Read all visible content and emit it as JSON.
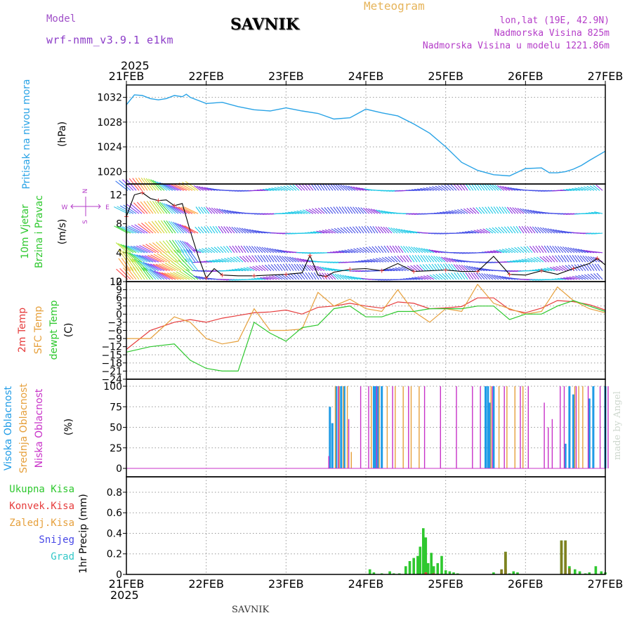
{
  "header": {
    "model_label": "Model",
    "model_name": "wrf-nmm_v3.9.1 e1km",
    "title": "SAVNIK",
    "chart_kind": "Meteogram",
    "lonlat": "lon,lat (19E, 42.9N)",
    "elevation": "Nadmorska Visina 825m",
    "model_elevation": "Nadmorska Visina u modelu 1221.86m",
    "year": "2025",
    "footer_station": "SAVNIK",
    "credit": "made by Angel"
  },
  "colors": {
    "pressure": "#29a3e6",
    "wind_label": "#2ec82e",
    "temp2m": "#e63c3c",
    "sfc_temp": "#e6a03c",
    "dewpt": "#2ec82e",
    "cloud_high": "#1e9be6",
    "cloud_mid": "#e6a03c",
    "cloud_low": "#c832c8",
    "precip_total": "#2ec82e",
    "precip_conv": "#e63c3c",
    "precip_frozen": "#e6a03c",
    "snow": "#4646e6",
    "hail": "#32c8c8"
  },
  "chart_data": [
    {
      "type": "line",
      "panel": "pressure",
      "ylabel": "Pritisak na nivou mora",
      "unit": "(hPa)",
      "x_categories": [
        "21FEB",
        "22FEB",
        "23FEB",
        "24FEB",
        "25FEB",
        "26FEB",
        "27FEB"
      ],
      "ylim": [
        1018,
        1034
      ],
      "yticks": [
        1020,
        1024,
        1028,
        1032
      ],
      "x": [
        0,
        0.1,
        0.2,
        0.3,
        0.4,
        0.5,
        0.6,
        0.7,
        0.75,
        0.8,
        0.9,
        1.0,
        1.2,
        1.4,
        1.6,
        1.8,
        2.0,
        2.2,
        2.4,
        2.6,
        2.8,
        3.0,
        3.2,
        3.4,
        3.6,
        3.8,
        4.0,
        4.2,
        4.4,
        4.6,
        4.8,
        5.0,
        5.2,
        5.3,
        5.4,
        5.5,
        5.6,
        5.7,
        5.8,
        6.0
      ],
      "values": [
        1030.8,
        1032.4,
        1032.3,
        1031.8,
        1031.6,
        1031.8,
        1032.3,
        1032.1,
        1032.5,
        1032.0,
        1031.5,
        1031.0,
        1031.2,
        1030.5,
        1030.0,
        1029.8,
        1030.3,
        1029.8,
        1029.4,
        1028.5,
        1028.7,
        1030.1,
        1029.5,
        1029.0,
        1027.7,
        1026.2,
        1024.0,
        1021.5,
        1020.2,
        1019.5,
        1019.3,
        1020.5,
        1020.6,
        1019.8,
        1019.8,
        1020.0,
        1020.4,
        1021.0,
        1021.8,
        1023.3
      ]
    },
    {
      "type": "line",
      "panel": "wind",
      "ylabel": [
        "10m Vjetar",
        "Brzina i Pravac"
      ],
      "unit": "(m/s)",
      "compass": [
        "N",
        "W",
        "E",
        "S"
      ],
      "ylim": [
        0,
        13.5
      ],
      "yticks": [
        0,
        4,
        8,
        12
      ],
      "x": [
        0,
        0.1,
        0.2,
        0.3,
        0.4,
        0.5,
        0.6,
        0.7,
        0.8,
        0.9,
        1.0,
        1.1,
        1.2,
        1.4,
        1.6,
        1.8,
        2.0,
        2.2,
        2.3,
        2.4,
        2.5,
        2.6,
        2.8,
        3.0,
        3.2,
        3.4,
        3.6,
        3.8,
        4.0,
        4.2,
        4.4,
        4.6,
        4.8,
        5.0,
        5.2,
        5.4,
        5.6,
        5.8,
        5.9,
        6.0
      ],
      "values": [
        9.0,
        12.0,
        12.3,
        11.5,
        11.2,
        11.3,
        10.5,
        10.8,
        7.0,
        3.5,
        0.5,
        1.8,
        0.9,
        0.8,
        0.8,
        0.9,
        1.0,
        1.2,
        3.6,
        0.9,
        0.7,
        1.3,
        1.7,
        1.8,
        1.5,
        2.5,
        1.4,
        1.5,
        1.6,
        1.4,
        1.4,
        3.5,
        1.0,
        0.9,
        1.5,
        1.0,
        1.8,
        2.5,
        3.2,
        2.3
      ],
      "barb_levels": [
        0.3,
        1.5,
        2.7,
        4.0,
        6.7,
        9.4,
        12.6
      ],
      "barb_color_cycle": [
        "#ff5050",
        "#ffa03c",
        "#dcd23c",
        "#b4e63c",
        "#3cdc3c",
        "#3cc8e6",
        "#3c78f0",
        "#8c3cf0"
      ]
    },
    {
      "type": "line",
      "panel": "temperature",
      "ylabel": [
        "2m Temp",
        "SFC Temp",
        "dewpt Temp"
      ],
      "unit": "(C)",
      "ylim": [
        -24,
        12
      ],
      "yticks": [
        12,
        9,
        6,
        3,
        0,
        -3,
        -6,
        -9,
        -12,
        -15,
        -18,
        -21,
        -24
      ],
      "series": [
        {
          "name": "2m Temp",
          "color": "#e63c3c",
          "x": [
            0,
            0.3,
            0.6,
            0.8,
            1.0,
            1.2,
            1.4,
            1.6,
            1.8,
            2.0,
            2.2,
            2.4,
            2.6,
            2.8,
            3.0,
            3.2,
            3.4,
            3.6,
            3.8,
            4.0,
            4.2,
            4.4,
            4.6,
            4.8,
            5.0,
            5.2,
            5.4,
            5.6,
            5.8,
            6.0
          ],
          "values": [
            -13,
            -6,
            -3,
            -2,
            -3,
            -1.5,
            -0.5,
            0.5,
            0.8,
            1.5,
            0,
            2.5,
            3,
            4,
            3,
            2.2,
            4.5,
            4,
            2,
            2.3,
            2.8,
            6,
            6,
            1.7,
            0.5,
            2.2,
            5,
            4.6,
            3.5,
            1.5
          ]
        },
        {
          "name": "SFC Temp",
          "color": "#e6a03c",
          "x": [
            0,
            0.3,
            0.6,
            0.8,
            1.0,
            1.2,
            1.4,
            1.6,
            1.8,
            2.0,
            2.2,
            2.4,
            2.6,
            2.8,
            3.0,
            3.2,
            3.4,
            3.6,
            3.8,
            4.0,
            4.2,
            4.4,
            4.6,
            4.8,
            5.0,
            5.2,
            5.4,
            5.6,
            5.8,
            6.0
          ],
          "values": [
            -9,
            -9,
            -1,
            -3,
            -9,
            -11,
            -10,
            2,
            -6,
            -6,
            -5.5,
            8,
            3,
            5.5,
            2,
            1,
            9,
            1,
            -3,
            2,
            1,
            11,
            4,
            2,
            0,
            1,
            10,
            5,
            2,
            0.5
          ]
        },
        {
          "name": "dewpt Temp",
          "color": "#2ec82e",
          "x": [
            0,
            0.3,
            0.6,
            0.8,
            1.0,
            1.2,
            1.4,
            1.6,
            1.8,
            2.0,
            2.2,
            2.4,
            2.6,
            2.8,
            3.0,
            3.2,
            3.4,
            3.6,
            3.8,
            4.0,
            4.2,
            4.4,
            4.6,
            4.8,
            5.0,
            5.2,
            5.4,
            5.6,
            5.8,
            6.0
          ],
          "values": [
            -14,
            -12,
            -11,
            -17,
            -20,
            -21,
            -21,
            -3,
            -7,
            -10,
            -5,
            -4,
            2,
            3,
            -1,
            -1,
            1,
            1,
            2,
            2,
            2,
            3,
            3,
            -2,
            0,
            0,
            3,
            5,
            3,
            1
          ]
        }
      ]
    },
    {
      "type": "bar",
      "panel": "clouds",
      "ylabel": [
        "Visoka Oblacnost",
        "Srednja Oblacnost",
        "Niska Oblacnost"
      ],
      "unit": "(%)",
      "ylim": [
        0,
        100
      ],
      "yticks": [
        0,
        25,
        50,
        75,
        100
      ],
      "series": [
        {
          "name": "Visoka Oblacnost",
          "color": "#1e9be6",
          "x": [
            2.55,
            2.58,
            2.63,
            2.69,
            2.73,
            3.1,
            3.12,
            3.15,
            3.2,
            4.5,
            4.53,
            4.55,
            4.6,
            5.5,
            5.55,
            5.6,
            5.8,
            5.85,
            6.0
          ],
          "values": [
            75,
            55,
            100,
            100,
            100,
            100,
            100,
            100,
            100,
            100,
            100,
            80,
            100,
            30,
            100,
            90,
            85,
            100,
            100
          ]
        },
        {
          "name": "Srednja Oblacnost",
          "color": "#e6a03c",
          "x": [
            2.6,
            2.65,
            2.7,
            2.75,
            2.8,
            3.05,
            3.15,
            3.25,
            3.35,
            3.45,
            3.55,
            3.65,
            4.55,
            4.65,
            4.75,
            4.85,
            4.95,
            5.6,
            5.65,
            5.7
          ],
          "values": [
            100,
            100,
            100,
            100,
            20,
            100,
            100,
            100,
            100,
            100,
            100,
            100,
            100,
            100,
            100,
            100,
            100,
            100,
            100,
            100
          ]
        },
        {
          "name": "Niska Oblacnost",
          "color": "#c832c8",
          "x": [
            2.5,
            2.62,
            2.75,
            2.9,
            3.0,
            3.1,
            3.3,
            3.5,
            3.7,
            3.9,
            4.1,
            4.3,
            4.4,
            4.55,
            4.7,
            4.9,
            5.0,
            5.2,
            5.25,
            5.3,
            5.4,
            5.45,
            5.6,
            5.75,
            5.9,
            6.0
          ],
          "values": [
            15,
            100,
            60,
            100,
            100,
            100,
            100,
            100,
            100,
            100,
            100,
            100,
            100,
            100,
            100,
            100,
            100,
            80,
            50,
            60,
            100,
            100,
            100,
            100,
            100,
            100
          ]
        }
      ]
    },
    {
      "type": "bar",
      "panel": "precip",
      "ylabel": "1hr Precip",
      "unit": "(mm)",
      "ylim": [
        0,
        0.95
      ],
      "yticks": [
        0,
        0.2,
        0.4,
        0.6,
        0.8
      ],
      "legend": [
        "Ukupna Kisa",
        "Konvek.Kisa",
        "Zaledj.Kisa",
        "Snijeg",
        "Grad"
      ],
      "series": [
        {
          "name": "Ukupna Kisa",
          "color": "#2ec82e",
          "x": [
            3.05,
            3.1,
            3.2,
            3.3,
            3.35,
            3.42,
            3.5,
            3.55,
            3.6,
            3.65,
            3.68,
            3.72,
            3.75,
            3.78,
            3.82,
            3.85,
            3.9,
            3.95,
            4.0,
            4.05,
            4.1,
            4.15,
            4.6,
            4.7,
            4.75,
            4.8,
            4.85,
            4.9,
            5.45,
            5.5,
            5.55,
            5.62,
            5.68,
            5.75,
            5.8,
            5.88,
            5.95,
            6.0
          ],
          "values": [
            0.05,
            0.02,
            0.01,
            0.03,
            0.01,
            0.01,
            0.08,
            0.13,
            0.16,
            0.18,
            0.27,
            0.45,
            0.36,
            0.11,
            0.21,
            0.08,
            0.11,
            0.18,
            0.04,
            0.03,
            0.02,
            0.01,
            0.02,
            0.04,
            0.22,
            0.01,
            0.03,
            0.02,
            0.33,
            0.33,
            0.08,
            0.05,
            0.03,
            0.01,
            0.02,
            0.08,
            0.03,
            0.02
          ]
        },
        {
          "name": "Konvek.Kisa",
          "color": "#e63c3c",
          "x": [
            3.75,
            3.85,
            4.7,
            4.75,
            5.5
          ],
          "values": [
            0.02,
            0.01,
            0.04,
            0.05,
            0.02
          ]
        },
        {
          "name": "Zaledj.Kisa",
          "color": "#808020",
          "x": [
            4.7,
            4.75,
            5.45,
            5.5,
            5.55
          ],
          "values": [
            0.05,
            0.22,
            0.33,
            0.33,
            0.06
          ]
        }
      ]
    }
  ]
}
